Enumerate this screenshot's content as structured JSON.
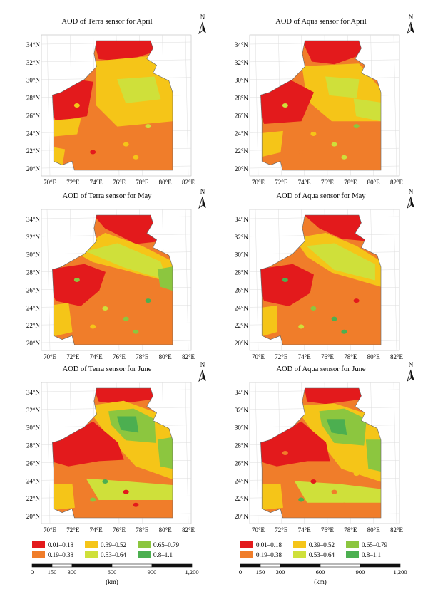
{
  "panels": [
    {
      "title": "AOD of Terra sensor for April",
      "variant": "terra-apr"
    },
    {
      "title": "AOD of Aqua sensor for April",
      "variant": "aqua-apr"
    },
    {
      "title": "AOD of Terra sensor for May",
      "variant": "terra-may"
    },
    {
      "title": "AOD of Aqua sensor for May",
      "variant": "aqua-may"
    },
    {
      "title": "AOD of Terra sensor for June",
      "variant": "terra-jun"
    },
    {
      "title": "AOD of Aqua sensor for June",
      "variant": "aqua-jun"
    }
  ],
  "axes": {
    "lon_labels": [
      "70°E",
      "72°E",
      "74°E",
      "76°E",
      "78°E",
      "80°E",
      "82°E"
    ],
    "lat_labels": [
      "34°N",
      "32°N",
      "30°N",
      "28°N",
      "26°N",
      "24°N",
      "22°N",
      "20°N"
    ]
  },
  "north_label": "N",
  "legend": [
    {
      "label": "0.01–0.18",
      "color": "#e31a1c"
    },
    {
      "label": "0.19–0.38",
      "color": "#f07d2a"
    },
    {
      "label": "0.39–0.52",
      "color": "#f5c518"
    },
    {
      "label": "0.53–0.64",
      "color": "#cfe03a"
    },
    {
      "label": "0.65–0.79",
      "color": "#8cc63f"
    },
    {
      "label": "0.8–1.1",
      "color": "#4caf50"
    }
  ],
  "scalebar": {
    "ticks": [
      "0",
      "150",
      "300",
      "600",
      "900",
      "1,200"
    ],
    "tick_values": [
      0,
      150,
      300,
      600,
      900,
      1200
    ],
    "unit": "(km)"
  }
}
